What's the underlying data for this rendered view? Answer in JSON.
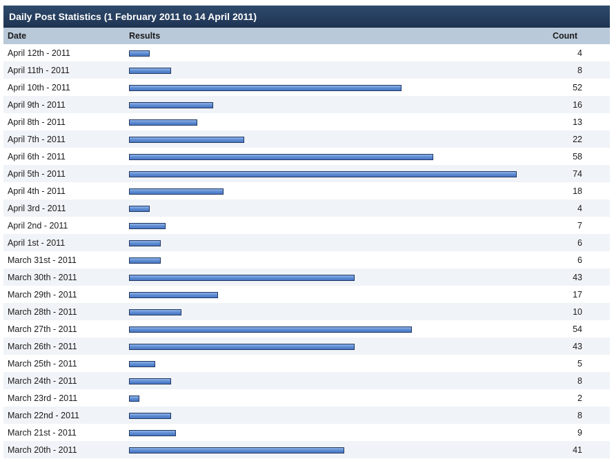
{
  "title": "Daily Post Statistics (1 February 2011 to 14 April 2011)",
  "columns": {
    "date": "Date",
    "results": "Results",
    "count": "Count"
  },
  "colors": {
    "bar_fill": "#5a88d0",
    "bar_border": "#1e3560",
    "title_bg": "#1f3554",
    "header_bg": "#b9c9d9"
  },
  "chart_data": {
    "type": "bar",
    "orientation": "horizontal",
    "categories": [
      "April 12th - 2011",
      "April 11th - 2011",
      "April 10th - 2011",
      "April 9th - 2011",
      "April 8th - 2011",
      "April 7th - 2011",
      "April 6th - 2011",
      "April 5th - 2011",
      "April 4th - 2011",
      "April 3rd - 2011",
      "April 2nd - 2011",
      "April 1st - 2011",
      "March 31st - 2011",
      "March 30th - 2011",
      "March 29th - 2011",
      "March 28th - 2011",
      "March 27th - 2011",
      "March 26th - 2011",
      "March 25th - 2011",
      "March 24th - 2011",
      "March 23rd - 2011",
      "March 22nd - 2011",
      "March 21st - 2011",
      "March 20th - 2011"
    ],
    "values": [
      4,
      8,
      52,
      16,
      13,
      22,
      58,
      74,
      18,
      4,
      7,
      6,
      6,
      43,
      17,
      10,
      54,
      43,
      5,
      8,
      2,
      8,
      9,
      41
    ]
  }
}
